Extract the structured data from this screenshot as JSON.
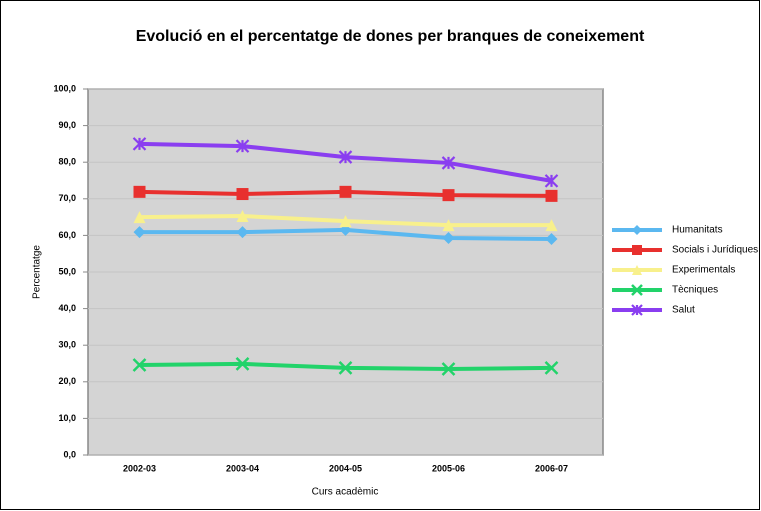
{
  "chart_data": {
    "type": "line",
    "title": "Evolució en el percentatge de dones per branques de coneixement",
    "x_label": "Curs acadèmic",
    "y_label": "Percentatge",
    "categories": [
      "2002-03",
      "2003-04",
      "2004-05",
      "2005-06",
      "2006-07"
    ],
    "ylim": [
      0,
      100
    ],
    "yticks": [
      {
        "value": 0,
        "label": "0,0"
      },
      {
        "value": 10,
        "label": "10,0"
      },
      {
        "value": 20,
        "label": "20,0"
      },
      {
        "value": 30,
        "label": "30,0"
      },
      {
        "value": 40,
        "label": "40,0"
      },
      {
        "value": 50,
        "label": "50,0"
      },
      {
        "value": 60,
        "label": "60,0"
      },
      {
        "value": 70,
        "label": "70,0"
      },
      {
        "value": 80,
        "label": "80,0"
      },
      {
        "value": 90,
        "label": "90,0"
      },
      {
        "value": 100,
        "label": "100,0"
      }
    ],
    "grid": true,
    "legend": "right",
    "series": [
      {
        "name": "Humanitats",
        "color": "#5bb8f0",
        "marker": "diamond",
        "values": [
          60.9,
          60.9,
          61.5,
          59.3,
          59.0
        ]
      },
      {
        "name": "Socials i Jurídiques",
        "color": "#e8302e",
        "marker": "square",
        "values": [
          71.9,
          71.3,
          71.9,
          71.0,
          70.8
        ]
      },
      {
        "name": "Experimentals",
        "color": "#f8f08c",
        "marker": "triangle",
        "values": [
          65.0,
          65.3,
          63.9,
          62.8,
          62.8
        ]
      },
      {
        "name": "Tècniques",
        "color": "#22d36a",
        "marker": "x",
        "values": [
          24.6,
          24.9,
          23.8,
          23.5,
          23.8
        ]
      },
      {
        "name": "Salut",
        "color": "#8a3ef0",
        "marker": "star",
        "values": [
          85.0,
          84.4,
          81.4,
          79.8,
          74.9
        ]
      }
    ]
  }
}
